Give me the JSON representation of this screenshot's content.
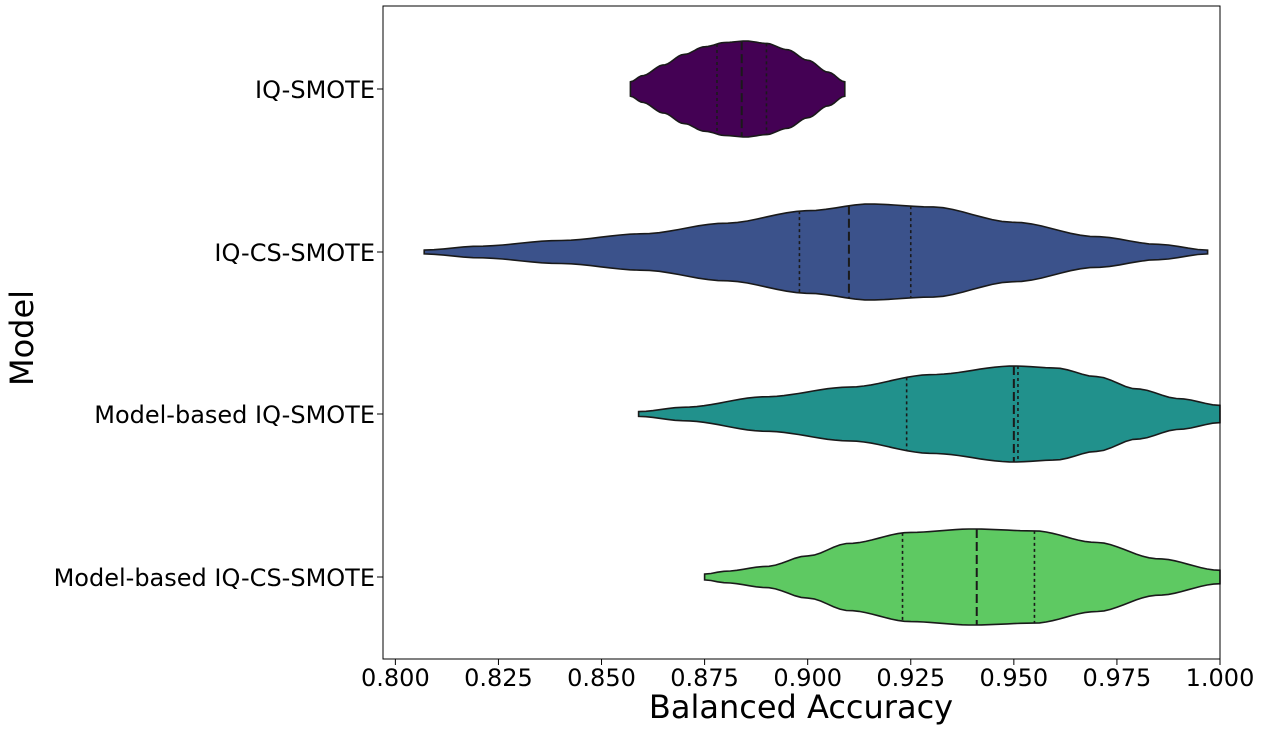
{
  "chart_data": {
    "type": "violin",
    "orientation": "horizontal",
    "title": "",
    "xlabel": "Balanced Accuracy",
    "ylabel": "Model",
    "xlim": [
      0.797,
      1.0
    ],
    "xticks": [
      "0.800",
      "0.825",
      "0.850",
      "0.875",
      "0.900",
      "0.925",
      "0.950",
      "0.975",
      "1.000"
    ],
    "xtick_values": [
      0.8,
      0.825,
      0.85,
      0.875,
      0.9,
      0.925,
      0.95,
      0.975,
      1.0
    ],
    "grid": false,
    "legend": "none",
    "categories": [
      "IQ-SMOTE",
      "IQ-CS-SMOTE",
      "Model-based IQ-SMOTE",
      "Model-based IQ-CS-SMOTE"
    ],
    "series": [
      {
        "label": "IQ-SMOTE",
        "color": "#440154",
        "range": [
          0.857,
          0.909
        ],
        "quartiles": [
          0.878,
          0.884,
          0.89
        ],
        "density_profile": [
          [
            0.857,
            0.15
          ],
          [
            0.86,
            0.28
          ],
          [
            0.865,
            0.5
          ],
          [
            0.87,
            0.72
          ],
          [
            0.875,
            0.88
          ],
          [
            0.88,
            0.97
          ],
          [
            0.885,
            1.0
          ],
          [
            0.89,
            0.95
          ],
          [
            0.895,
            0.82
          ],
          [
            0.9,
            0.6
          ],
          [
            0.905,
            0.35
          ],
          [
            0.909,
            0.15
          ]
        ]
      },
      {
        "label": "IQ-CS-SMOTE",
        "color": "#3b528b",
        "range": [
          0.807,
          0.997
        ],
        "quartiles": [
          0.898,
          0.91,
          0.925
        ],
        "density_profile": [
          [
            0.807,
            0.04
          ],
          [
            0.82,
            0.12
          ],
          [
            0.84,
            0.24
          ],
          [
            0.86,
            0.38
          ],
          [
            0.88,
            0.6
          ],
          [
            0.9,
            0.86
          ],
          [
            0.915,
            1.0
          ],
          [
            0.93,
            0.94
          ],
          [
            0.95,
            0.62
          ],
          [
            0.97,
            0.32
          ],
          [
            0.985,
            0.16
          ],
          [
            0.997,
            0.04
          ]
        ]
      },
      {
        "label": "Model-based IQ-SMOTE",
        "color": "#21918c",
        "range": [
          0.859,
          1.0
        ],
        "quartiles": [
          0.924,
          0.95,
          0.951
        ],
        "density_profile": [
          [
            0.859,
            0.05
          ],
          [
            0.87,
            0.14
          ],
          [
            0.89,
            0.36
          ],
          [
            0.91,
            0.56
          ],
          [
            0.93,
            0.82
          ],
          [
            0.95,
            1.0
          ],
          [
            0.96,
            0.96
          ],
          [
            0.97,
            0.78
          ],
          [
            0.98,
            0.52
          ],
          [
            0.99,
            0.32
          ],
          [
            1.0,
            0.18
          ]
        ]
      },
      {
        "label": "Model-based IQ-CS-SMOTE",
        "color": "#5ec962",
        "range": [
          0.875,
          1.0
        ],
        "quartiles": [
          0.923,
          0.941,
          0.955
        ],
        "density_profile": [
          [
            0.875,
            0.06
          ],
          [
            0.88,
            0.12
          ],
          [
            0.89,
            0.22
          ],
          [
            0.9,
            0.44
          ],
          [
            0.91,
            0.7
          ],
          [
            0.925,
            0.93
          ],
          [
            0.94,
            1.0
          ],
          [
            0.955,
            0.96
          ],
          [
            0.97,
            0.72
          ],
          [
            0.985,
            0.38
          ],
          [
            1.0,
            0.14
          ]
        ]
      }
    ]
  }
}
